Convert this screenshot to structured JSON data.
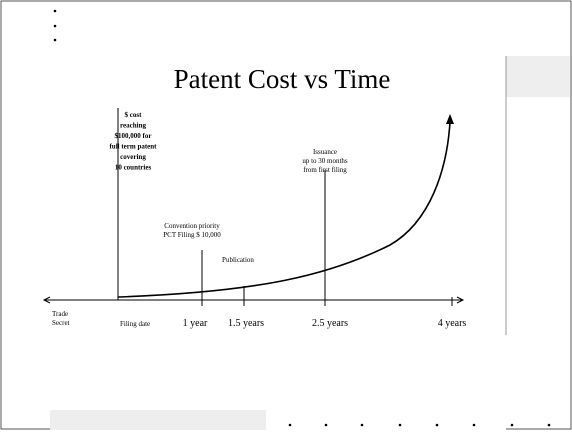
{
  "title": "Patent Cost vs Time",
  "annotations": {
    "cost": [
      "$ cost",
      "reaching",
      "$100,000 for",
      "full term patent",
      "covering",
      "10 countries"
    ],
    "convention": [
      "Convention priority",
      "PCT Filing $ 10,000"
    ],
    "publication": [
      "Publication"
    ],
    "issuance": [
      "Issuance",
      "up to 30 months",
      "from first filing"
    ]
  },
  "timeline": {
    "trade_secret": [
      "Trade",
      "Secret"
    ],
    "labels": [
      "Filing date",
      "1 year",
      "1.5 years",
      "2.5 years",
      "4 years"
    ]
  }
}
